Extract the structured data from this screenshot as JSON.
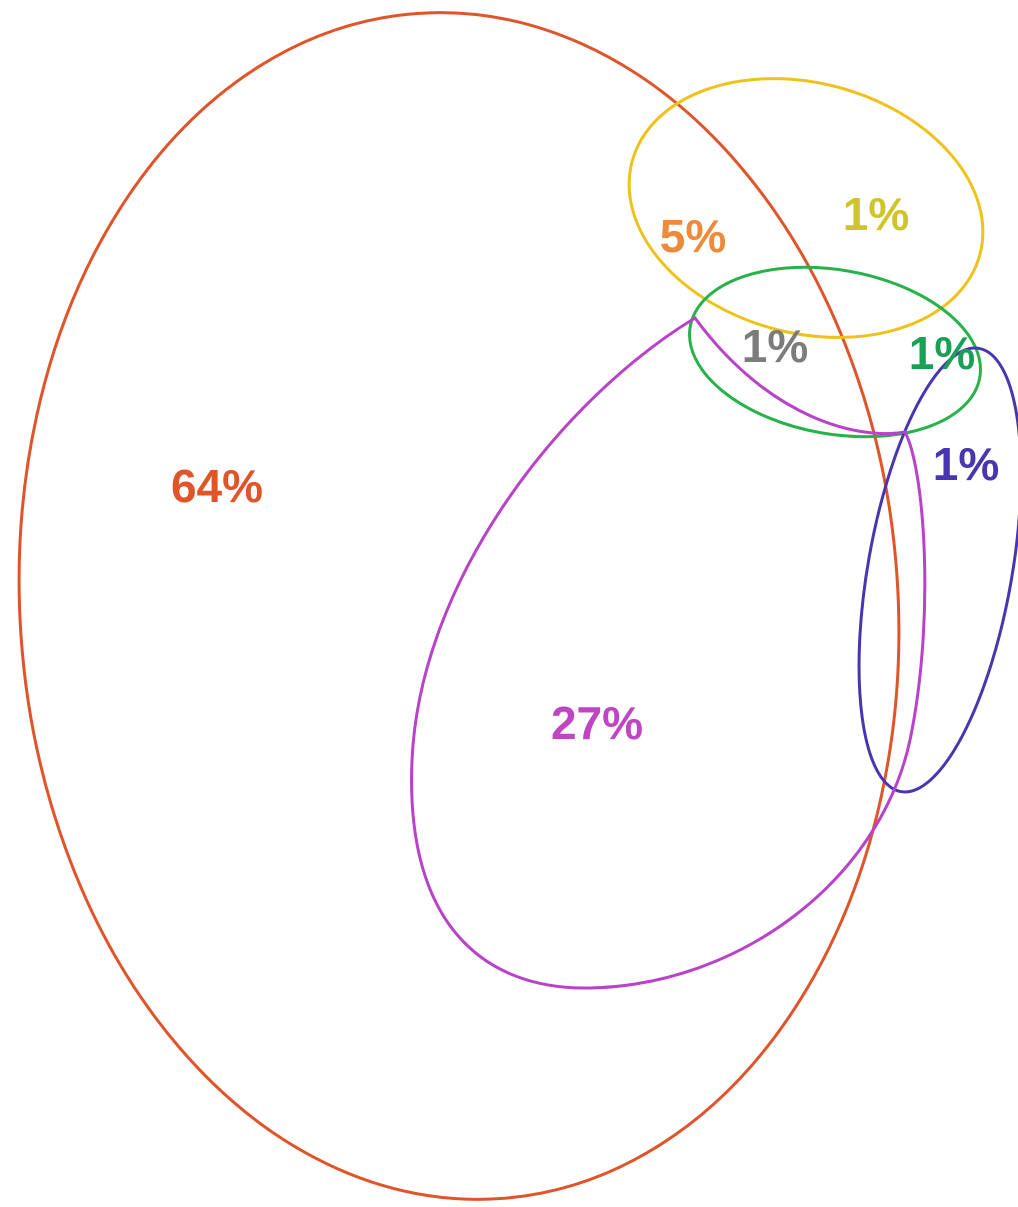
{
  "regions": [
    {
      "id": "large-only",
      "label": "64%",
      "color": "#e0542a"
    },
    {
      "id": "large-and-upper",
      "label": "5%",
      "color": "#ee8a3c"
    },
    {
      "id": "upper-only",
      "label": "1%",
      "color": "#cfc42a"
    },
    {
      "id": "large-upper-middle",
      "label": "1%",
      "color": "#7c7c7c"
    },
    {
      "id": "upper-and-middle",
      "label": "1%",
      "color": "#1aa055"
    },
    {
      "id": "lower-right-only",
      "label": "1%",
      "color": "#4a35b0"
    },
    {
      "id": "large-and-lower",
      "label": "27%",
      "color": "#c045c4"
    }
  ],
  "sets": [
    {
      "id": "large-set",
      "color": "#e0542a"
    },
    {
      "id": "upper-set",
      "color": "#eec21a"
    },
    {
      "id": "middle-set",
      "color": "#27b24a"
    },
    {
      "id": "right-set",
      "color": "#4a35b0"
    },
    {
      "id": "lower-set",
      "color": "#b842c8"
    }
  ]
}
